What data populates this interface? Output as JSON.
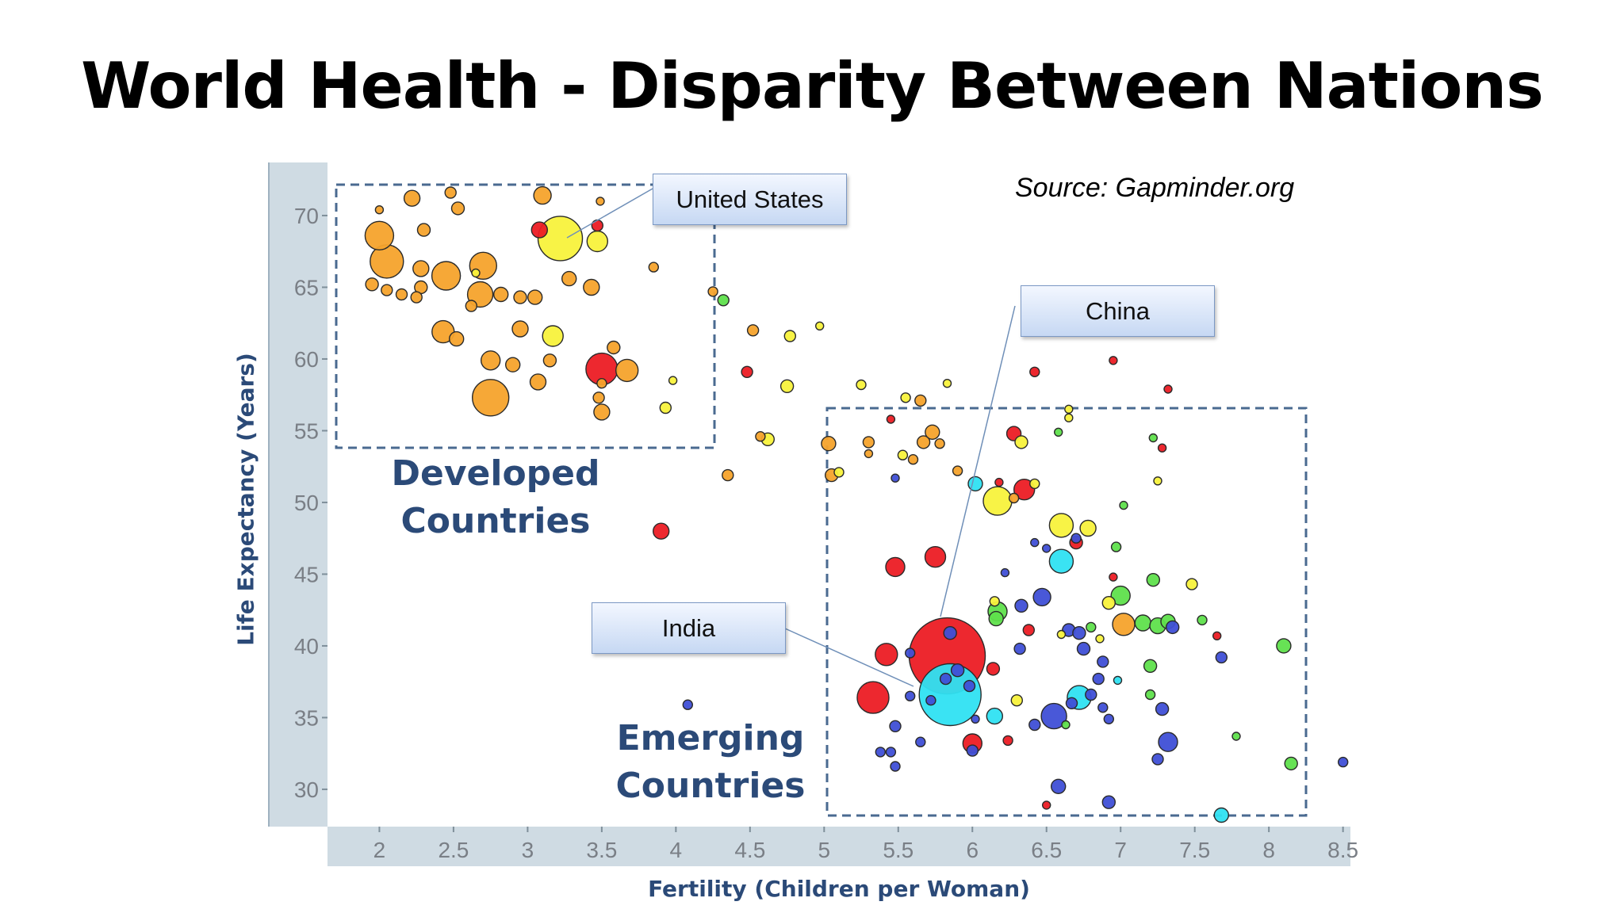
{
  "title": "World Health -  Disparity Between Nations",
  "source": "Source:  Gapminder.org",
  "callouts": {
    "us": "United States",
    "china": "China",
    "india": "India"
  },
  "groups": {
    "developed": "Developed\nCountries",
    "emerging": "Emerging\nCountries"
  },
  "chart_data": {
    "type": "scatter",
    "title": "",
    "xlabel": "Fertility (Children per Woman)",
    "ylabel": "Life Expectancy (Years)",
    "xlim": [
      1.65,
      8.55
    ],
    "ylim": [
      27.4,
      73.7
    ],
    "xticks": [
      2,
      2.5,
      3,
      3.5,
      4,
      4.5,
      5,
      5.5,
      6,
      6.5,
      7,
      7.5,
      8,
      8.5
    ],
    "yticks": [
      30,
      35,
      40,
      45,
      50,
      55,
      60,
      65,
      70
    ],
    "grid": false,
    "legend": "none",
    "colors": {
      "orange": "#f6a32c",
      "yellow": "#f8f23c",
      "red": "#ec1c24",
      "green": "#5fe04c",
      "cyan": "#2fe2f2",
      "blue": "#3f4fd6"
    },
    "points": [
      {
        "x": 1.95,
        "y": 65.2,
        "r": 8,
        "c": "orange"
      },
      {
        "x": 2.05,
        "y": 64.8,
        "r": 7,
        "c": "orange"
      },
      {
        "x": 2.15,
        "y": 64.5,
        "r": 7,
        "c": "orange"
      },
      {
        "x": 2.25,
        "y": 64.3,
        "r": 7,
        "c": "orange"
      },
      {
        "x": 2.0,
        "y": 68.6,
        "r": 18,
        "c": "orange"
      },
      {
        "x": 2.05,
        "y": 66.8,
        "r": 21,
        "c": "orange"
      },
      {
        "x": 2.0,
        "y": 70.4,
        "r": 5,
        "c": "orange"
      },
      {
        "x": 2.22,
        "y": 71.2,
        "r": 10,
        "c": "orange"
      },
      {
        "x": 2.3,
        "y": 69.0,
        "r": 8,
        "c": "orange"
      },
      {
        "x": 2.28,
        "y": 66.3,
        "r": 10,
        "c": "orange"
      },
      {
        "x": 2.28,
        "y": 65.0,
        "r": 8,
        "c": "orange"
      },
      {
        "x": 2.48,
        "y": 71.6,
        "r": 7,
        "c": "orange"
      },
      {
        "x": 2.53,
        "y": 70.5,
        "r": 8,
        "c": "orange"
      },
      {
        "x": 2.45,
        "y": 65.8,
        "r": 18,
        "c": "orange"
      },
      {
        "x": 2.7,
        "y": 66.5,
        "r": 17,
        "c": "orange"
      },
      {
        "x": 2.68,
        "y": 64.5,
        "r": 16,
        "c": "orange"
      },
      {
        "x": 2.62,
        "y": 63.7,
        "r": 7,
        "c": "orange"
      },
      {
        "x": 2.65,
        "y": 66.0,
        "r": 5,
        "c": "yellow"
      },
      {
        "x": 2.82,
        "y": 64.5,
        "r": 9,
        "c": "orange"
      },
      {
        "x": 2.95,
        "y": 64.3,
        "r": 8,
        "c": "orange"
      },
      {
        "x": 3.05,
        "y": 64.3,
        "r": 9,
        "c": "orange"
      },
      {
        "x": 3.1,
        "y": 71.4,
        "r": 11,
        "c": "orange"
      },
      {
        "x": 3.22,
        "y": 68.4,
        "r": 28,
        "c": "yellow"
      },
      {
        "x": 3.08,
        "y": 69.0,
        "r": 10,
        "c": "red"
      },
      {
        "x": 3.47,
        "y": 68.2,
        "r": 13,
        "c": "yellow"
      },
      {
        "x": 3.47,
        "y": 69.3,
        "r": 7,
        "c": "red"
      },
      {
        "x": 3.49,
        "y": 71.0,
        "r": 5,
        "c": "orange"
      },
      {
        "x": 3.28,
        "y": 65.6,
        "r": 9,
        "c": "orange"
      },
      {
        "x": 3.43,
        "y": 65.0,
        "r": 10,
        "c": "orange"
      },
      {
        "x": 2.43,
        "y": 61.9,
        "r": 14,
        "c": "orange"
      },
      {
        "x": 2.52,
        "y": 61.4,
        "r": 9,
        "c": "orange"
      },
      {
        "x": 2.95,
        "y": 62.1,
        "r": 10,
        "c": "orange"
      },
      {
        "x": 3.17,
        "y": 61.6,
        "r": 13,
        "c": "yellow"
      },
      {
        "x": 2.75,
        "y": 59.9,
        "r": 12,
        "c": "orange"
      },
      {
        "x": 2.9,
        "y": 59.6,
        "r": 9,
        "c": "orange"
      },
      {
        "x": 3.15,
        "y": 59.9,
        "r": 8,
        "c": "orange"
      },
      {
        "x": 3.07,
        "y": 58.4,
        "r": 10,
        "c": "orange"
      },
      {
        "x": 2.75,
        "y": 57.3,
        "r": 23,
        "c": "orange"
      },
      {
        "x": 3.5,
        "y": 59.3,
        "r": 20,
        "c": "red"
      },
      {
        "x": 3.67,
        "y": 59.2,
        "r": 14,
        "c": "orange"
      },
      {
        "x": 3.58,
        "y": 60.8,
        "r": 8,
        "c": "orange"
      },
      {
        "x": 3.48,
        "y": 57.3,
        "r": 7,
        "c": "orange"
      },
      {
        "x": 3.5,
        "y": 56.3,
        "r": 10,
        "c": "orange"
      },
      {
        "x": 3.5,
        "y": 58.3,
        "r": 6,
        "c": "orange"
      },
      {
        "x": 3.85,
        "y": 66.4,
        "r": 6,
        "c": "orange"
      },
      {
        "x": 3.93,
        "y": 56.6,
        "r": 7,
        "c": "yellow"
      },
      {
        "x": 3.98,
        "y": 58.5,
        "r": 5,
        "c": "yellow"
      },
      {
        "x": 4.25,
        "y": 64.7,
        "r": 6,
        "c": "orange"
      },
      {
        "x": 4.32,
        "y": 64.1,
        "r": 7,
        "c": "green"
      },
      {
        "x": 4.52,
        "y": 62.0,
        "r": 7,
        "c": "orange"
      },
      {
        "x": 4.48,
        "y": 59.1,
        "r": 7,
        "c": "red"
      },
      {
        "x": 4.77,
        "y": 61.6,
        "r": 7,
        "c": "yellow"
      },
      {
        "x": 4.97,
        "y": 62.3,
        "r": 5,
        "c": "yellow"
      },
      {
        "x": 4.75,
        "y": 58.1,
        "r": 8,
        "c": "yellow"
      },
      {
        "x": 4.57,
        "y": 54.6,
        "r": 6,
        "c": "orange"
      },
      {
        "x": 4.62,
        "y": 54.4,
        "r": 8,
        "c": "yellow"
      },
      {
        "x": 4.35,
        "y": 51.9,
        "r": 7,
        "c": "orange"
      },
      {
        "x": 5.03,
        "y": 54.1,
        "r": 9,
        "c": "orange"
      },
      {
        "x": 5.05,
        "y": 51.9,
        "r": 8,
        "c": "orange"
      },
      {
        "x": 5.1,
        "y": 52.1,
        "r": 6,
        "c": "yellow"
      },
      {
        "x": 5.25,
        "y": 58.2,
        "r": 6,
        "c": "yellow"
      },
      {
        "x": 5.3,
        "y": 54.2,
        "r": 7,
        "c": "orange"
      },
      {
        "x": 5.3,
        "y": 53.4,
        "r": 5,
        "c": "orange"
      },
      {
        "x": 5.55,
        "y": 57.3,
        "r": 6,
        "c": "yellow"
      },
      {
        "x": 5.65,
        "y": 57.1,
        "r": 7,
        "c": "orange"
      },
      {
        "x": 5.83,
        "y": 58.3,
        "r": 5,
        "c": "yellow"
      },
      {
        "x": 5.45,
        "y": 55.8,
        "r": 5,
        "c": "red"
      },
      {
        "x": 5.73,
        "y": 54.9,
        "r": 9,
        "c": "orange"
      },
      {
        "x": 5.67,
        "y": 54.2,
        "r": 8,
        "c": "orange"
      },
      {
        "x": 5.78,
        "y": 54.1,
        "r": 6,
        "c": "orange"
      },
      {
        "x": 5.53,
        "y": 53.3,
        "r": 6,
        "c": "yellow"
      },
      {
        "x": 5.6,
        "y": 53.0,
        "r": 6,
        "c": "orange"
      },
      {
        "x": 5.48,
        "y": 51.7,
        "r": 5,
        "c": "blue"
      },
      {
        "x": 5.9,
        "y": 52.2,
        "r": 6,
        "c": "orange"
      },
      {
        "x": 6.02,
        "y": 51.3,
        "r": 9,
        "c": "cyan"
      },
      {
        "x": 6.28,
        "y": 54.8,
        "r": 9,
        "c": "red"
      },
      {
        "x": 6.33,
        "y": 54.2,
        "r": 8,
        "c": "yellow"
      },
      {
        "x": 6.18,
        "y": 51.4,
        "r": 5,
        "c": "red"
      },
      {
        "x": 6.35,
        "y": 50.9,
        "r": 13,
        "c": "red"
      },
      {
        "x": 6.42,
        "y": 51.3,
        "r": 6,
        "c": "yellow"
      },
      {
        "x": 6.17,
        "y": 50.1,
        "r": 18,
        "c": "yellow"
      },
      {
        "x": 6.28,
        "y": 50.3,
        "r": 6,
        "c": "orange"
      },
      {
        "x": 6.42,
        "y": 59.1,
        "r": 6,
        "c": "red"
      },
      {
        "x": 6.58,
        "y": 54.9,
        "r": 5,
        "c": "green"
      },
      {
        "x": 6.65,
        "y": 55.9,
        "r": 5,
        "c": "yellow"
      },
      {
        "x": 6.65,
        "y": 56.5,
        "r": 5,
        "c": "yellow"
      },
      {
        "x": 6.95,
        "y": 59.9,
        "r": 5,
        "c": "red"
      },
      {
        "x": 7.32,
        "y": 57.9,
        "r": 5,
        "c": "red"
      },
      {
        "x": 7.22,
        "y": 54.5,
        "r": 5,
        "c": "green"
      },
      {
        "x": 7.28,
        "y": 53.8,
        "r": 5,
        "c": "red"
      },
      {
        "x": 7.25,
        "y": 51.5,
        "r": 5,
        "c": "yellow"
      },
      {
        "x": 7.02,
        "y": 49.8,
        "r": 5,
        "c": "green"
      },
      {
        "x": 6.6,
        "y": 48.4,
        "r": 15,
        "c": "yellow"
      },
      {
        "x": 6.78,
        "y": 48.2,
        "r": 10,
        "c": "yellow"
      },
      {
        "x": 6.7,
        "y": 47.2,
        "r": 8,
        "c": "red"
      },
      {
        "x": 6.7,
        "y": 47.5,
        "r": 6,
        "c": "blue"
      },
      {
        "x": 6.42,
        "y": 47.2,
        "r": 5,
        "c": "blue"
      },
      {
        "x": 6.5,
        "y": 46.8,
        "r": 5,
        "c": "blue"
      },
      {
        "x": 6.97,
        "y": 46.9,
        "r": 6,
        "c": "green"
      },
      {
        "x": 6.6,
        "y": 45.9,
        "r": 15,
        "c": "cyan"
      },
      {
        "x": 5.48,
        "y": 45.5,
        "r": 12,
        "c": "red"
      },
      {
        "x": 5.75,
        "y": 46.2,
        "r": 13,
        "c": "red"
      },
      {
        "x": 6.22,
        "y": 45.1,
        "r": 5,
        "c": "blue"
      },
      {
        "x": 6.47,
        "y": 43.4,
        "r": 11,
        "c": "blue"
      },
      {
        "x": 6.33,
        "y": 42.8,
        "r": 8,
        "c": "blue"
      },
      {
        "x": 6.15,
        "y": 43.1,
        "r": 6,
        "c": "yellow"
      },
      {
        "x": 6.16,
        "y": 41.9,
        "r": 9,
        "c": "green"
      },
      {
        "x": 6.17,
        "y": 42.4,
        "r": 12,
        "c": "green"
      },
      {
        "x": 6.95,
        "y": 44.8,
        "r": 5,
        "c": "red"
      },
      {
        "x": 6.92,
        "y": 43.0,
        "r": 8,
        "c": "yellow"
      },
      {
        "x": 7.0,
        "y": 43.5,
        "r": 12,
        "c": "green"
      },
      {
        "x": 7.22,
        "y": 44.6,
        "r": 8,
        "c": "green"
      },
      {
        "x": 7.48,
        "y": 44.3,
        "r": 7,
        "c": "yellow"
      },
      {
        "x": 7.02,
        "y": 41.5,
        "r": 14,
        "c": "orange"
      },
      {
        "x": 7.15,
        "y": 41.6,
        "r": 10,
        "c": "green"
      },
      {
        "x": 7.25,
        "y": 41.4,
        "r": 10,
        "c": "green"
      },
      {
        "x": 7.32,
        "y": 41.7,
        "r": 9,
        "c": "green"
      },
      {
        "x": 7.35,
        "y": 41.3,
        "r": 8,
        "c": "blue"
      },
      {
        "x": 7.55,
        "y": 41.8,
        "r": 6,
        "c": "green"
      },
      {
        "x": 6.6,
        "y": 40.8,
        "r": 5,
        "c": "yellow"
      },
      {
        "x": 6.65,
        "y": 41.1,
        "r": 8,
        "c": "blue"
      },
      {
        "x": 6.72,
        "y": 40.9,
        "r": 8,
        "c": "blue"
      },
      {
        "x": 6.8,
        "y": 41.3,
        "r": 6,
        "c": "green"
      },
      {
        "x": 6.86,
        "y": 40.5,
        "r": 5,
        "c": "yellow"
      },
      {
        "x": 6.75,
        "y": 39.8,
        "r": 8,
        "c": "blue"
      },
      {
        "x": 6.38,
        "y": 41.1,
        "r": 7,
        "c": "red"
      },
      {
        "x": 6.32,
        "y": 39.8,
        "r": 7,
        "c": "blue"
      },
      {
        "x": 7.65,
        "y": 40.7,
        "r": 5,
        "c": "red"
      },
      {
        "x": 7.68,
        "y": 39.2,
        "r": 7,
        "c": "blue"
      },
      {
        "x": 8.1,
        "y": 40.0,
        "r": 9,
        "c": "green"
      },
      {
        "x": 5.83,
        "y": 39.3,
        "r": 48,
        "c": "red"
      },
      {
        "x": 5.85,
        "y": 40.9,
        "r": 8,
        "c": "blue"
      },
      {
        "x": 5.58,
        "y": 39.5,
        "r": 6,
        "c": "blue"
      },
      {
        "x": 5.42,
        "y": 39.4,
        "r": 14,
        "c": "red"
      },
      {
        "x": 5.85,
        "y": 36.6,
        "r": 39,
        "c": "cyan"
      },
      {
        "x": 5.82,
        "y": 37.7,
        "r": 7,
        "c": "blue"
      },
      {
        "x": 5.9,
        "y": 38.3,
        "r": 8,
        "c": "blue"
      },
      {
        "x": 5.98,
        "y": 37.2,
        "r": 7,
        "c": "blue"
      },
      {
        "x": 6.14,
        "y": 38.4,
        "r": 8,
        "c": "red"
      },
      {
        "x": 6.3,
        "y": 36.2,
        "r": 7,
        "c": "yellow"
      },
      {
        "x": 6.15,
        "y": 35.1,
        "r": 10,
        "c": "cyan"
      },
      {
        "x": 6.02,
        "y": 34.9,
        "r": 5,
        "c": "blue"
      },
      {
        "x": 5.33,
        "y": 36.4,
        "r": 20,
        "c": "red"
      },
      {
        "x": 5.72,
        "y": 36.2,
        "r": 6,
        "c": "blue"
      },
      {
        "x": 5.58,
        "y": 36.5,
        "r": 6,
        "c": "blue"
      },
      {
        "x": 5.48,
        "y": 34.4,
        "r": 7,
        "c": "blue"
      },
      {
        "x": 6.0,
        "y": 33.2,
        "r": 12,
        "c": "red"
      },
      {
        "x": 6.0,
        "y": 32.7,
        "r": 7,
        "c": "blue"
      },
      {
        "x": 6.24,
        "y": 33.4,
        "r": 6,
        "c": "red"
      },
      {
        "x": 5.38,
        "y": 32.6,
        "r": 6,
        "c": "blue"
      },
      {
        "x": 5.45,
        "y": 32.6,
        "r": 6,
        "c": "blue"
      },
      {
        "x": 5.48,
        "y": 31.6,
        "r": 6,
        "c": "blue"
      },
      {
        "x": 5.65,
        "y": 33.3,
        "r": 6,
        "c": "blue"
      },
      {
        "x": 6.55,
        "y": 35.1,
        "r": 16,
        "c": "blue"
      },
      {
        "x": 6.42,
        "y": 34.5,
        "r": 7,
        "c": "blue"
      },
      {
        "x": 6.72,
        "y": 36.4,
        "r": 15,
        "c": "cyan"
      },
      {
        "x": 6.67,
        "y": 36.0,
        "r": 7,
        "c": "blue"
      },
      {
        "x": 6.63,
        "y": 34.5,
        "r": 5,
        "c": "green"
      },
      {
        "x": 6.85,
        "y": 37.7,
        "r": 7,
        "c": "blue"
      },
      {
        "x": 6.8,
        "y": 36.6,
        "r": 7,
        "c": "blue"
      },
      {
        "x": 6.88,
        "y": 38.9,
        "r": 7,
        "c": "blue"
      },
      {
        "x": 6.98,
        "y": 37.6,
        "r": 5,
        "c": "cyan"
      },
      {
        "x": 6.88,
        "y": 35.7,
        "r": 6,
        "c": "blue"
      },
      {
        "x": 6.92,
        "y": 34.9,
        "r": 6,
        "c": "blue"
      },
      {
        "x": 7.2,
        "y": 38.6,
        "r": 8,
        "c": "green"
      },
      {
        "x": 7.2,
        "y": 36.6,
        "r": 6,
        "c": "green"
      },
      {
        "x": 7.28,
        "y": 35.6,
        "r": 8,
        "c": "blue"
      },
      {
        "x": 7.78,
        "y": 33.7,
        "r": 5,
        "c": "green"
      },
      {
        "x": 7.32,
        "y": 33.3,
        "r": 12,
        "c": "blue"
      },
      {
        "x": 7.25,
        "y": 32.1,
        "r": 7,
        "c": "blue"
      },
      {
        "x": 8.15,
        "y": 31.8,
        "r": 8,
        "c": "green"
      },
      {
        "x": 8.5,
        "y": 31.9,
        "r": 6,
        "c": "blue"
      },
      {
        "x": 6.58,
        "y": 30.2,
        "r": 9,
        "c": "blue"
      },
      {
        "x": 6.92,
        "y": 29.1,
        "r": 8,
        "c": "blue"
      },
      {
        "x": 6.5,
        "y": 28.9,
        "r": 5,
        "c": "red"
      },
      {
        "x": 7.68,
        "y": 28.2,
        "r": 9,
        "c": "cyan"
      },
      {
        "x": 3.9,
        "y": 48.0,
        "r": 10,
        "c": "red"
      },
      {
        "x": 4.08,
        "y": 35.9,
        "r": 6,
        "c": "blue"
      }
    ]
  }
}
